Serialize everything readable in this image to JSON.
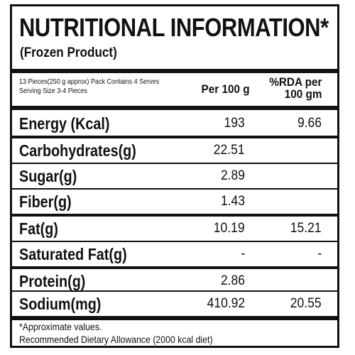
{
  "label": {
    "title": "NUTRITIONAL INFORMATION*",
    "subtitle": "(Frozen Product)",
    "pack_info": "13 Pieces(250 g approx) Pack Contains 4 Serves",
    "serving_size": "Serving Size 3-4 Pieces",
    "per_100g_header": "Per 100 g",
    "rda_header_line1": "%RDA per",
    "rda_header_line2": "100 gm"
  },
  "nutrients": [
    {
      "name": "Energy (Kcal)",
      "per_100g": "193",
      "rda": "9.66"
    },
    {
      "name": "Carbohydrates(g)",
      "per_100g": "22.51",
      "rda": ""
    },
    {
      "name": "Sugar(g)",
      "per_100g": "2.89",
      "rda": ""
    },
    {
      "name": "Fiber(g)",
      "per_100g": "1.43",
      "rda": ""
    },
    {
      "name": "Fat(g)",
      "per_100g": "10.19",
      "rda": "15.21"
    },
    {
      "name": "Saturated Fat(g)",
      "per_100g": "-",
      "rda": "-"
    },
    {
      "name": "Protein(g)",
      "per_100g": "2.86",
      "rda": ""
    },
    {
      "name": "Sodium(mg)",
      "per_100g": "410.92",
      "rda": "20.55"
    }
  ],
  "footnote": {
    "line1": "*Approximate values.",
    "line2": "Recommended Dietary Allowance (2000 kcal diet)"
  }
}
